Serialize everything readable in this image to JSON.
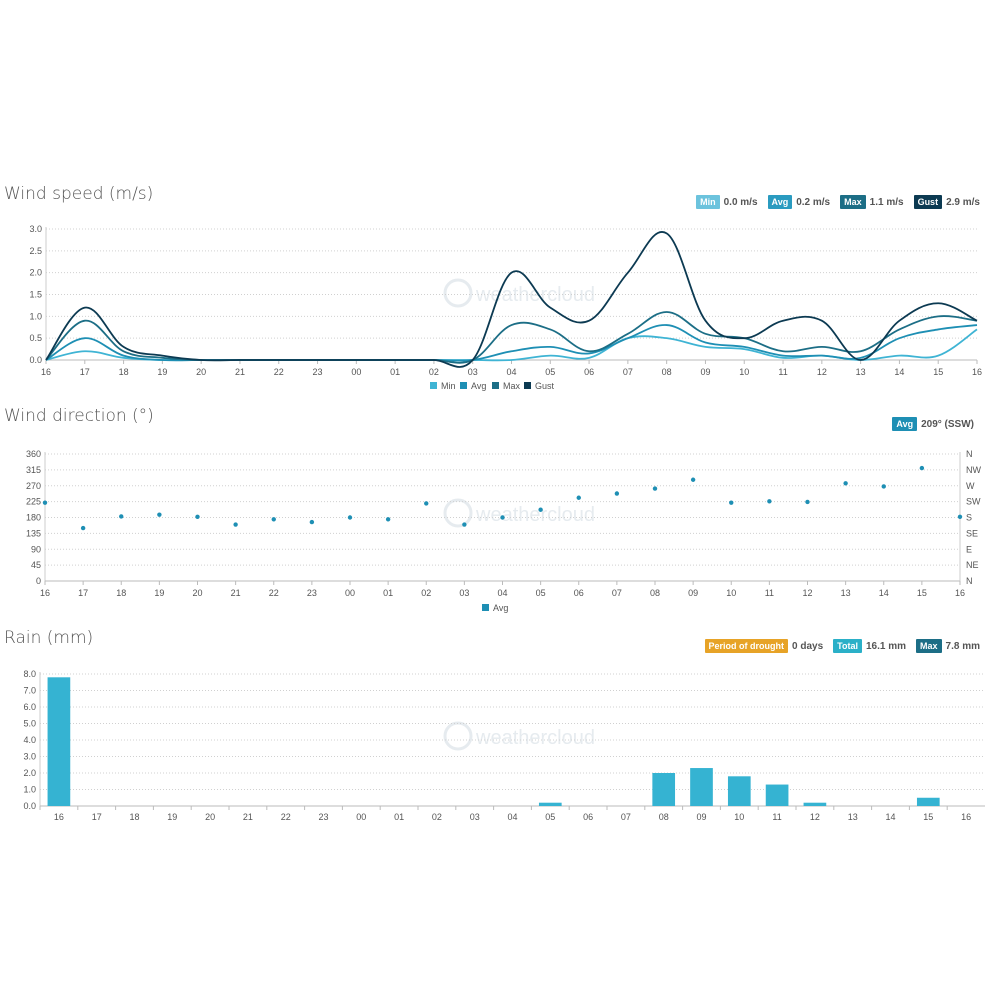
{
  "hours": [
    "16",
    "17",
    "18",
    "19",
    "20",
    "21",
    "22",
    "23",
    "00",
    "01",
    "02",
    "03",
    "04",
    "05",
    "06",
    "07",
    "08",
    "09",
    "10",
    "11",
    "12",
    "13",
    "14",
    "15",
    "16"
  ],
  "watermark": "weathercloud",
  "colors": {
    "min": "#3fb4d4",
    "avg": "#1e8fb4",
    "max": "#1c6e86",
    "gust": "#0c3a52",
    "dir": "#1e8fb4",
    "rain": "#35b3d2",
    "drought": "#e7a327",
    "total": "#2ab0c8",
    "rainmax": "#1c6e86"
  },
  "wind_speed": {
    "title": "Wind speed (m/s)",
    "stats": [
      {
        "label": "Min",
        "value": "0.0 m/s",
        "color": "#6cc3dd"
      },
      {
        "label": "Avg",
        "value": "0.2 m/s",
        "color": "#2a9bc0"
      },
      {
        "label": "Max",
        "value": "1.1 m/s",
        "color": "#1c6e86"
      },
      {
        "label": "Gust",
        "value": "2.9 m/s",
        "color": "#0c3a52"
      }
    ],
    "legend": [
      "Min",
      "Avg",
      "Max",
      "Gust"
    ]
  },
  "wind_direction": {
    "title": "Wind direction (°)",
    "stats": [
      {
        "label": "Avg",
        "value": "209° (SSW)",
        "color": "#1e8fb4"
      }
    ],
    "legend": [
      "Avg"
    ]
  },
  "rain": {
    "title": "Rain (mm)",
    "stats": [
      {
        "label": "Period of drought",
        "value": "0 days",
        "color": "#e7a327"
      },
      {
        "label": "Total",
        "value": "16.1 mm",
        "color": "#2ab0c8"
      },
      {
        "label": "Max",
        "value": "7.8 mm",
        "color": "#1c6e86"
      }
    ]
  },
  "chart_data": [
    {
      "type": "line",
      "title": "Wind speed (m/s)",
      "x": [
        "16",
        "17",
        "18",
        "19",
        "20",
        "21",
        "22",
        "23",
        "00",
        "01",
        "02",
        "03",
        "04",
        "05",
        "06",
        "07",
        "08",
        "09",
        "10",
        "11",
        "12",
        "13",
        "14",
        "15",
        "16"
      ],
      "ylim": [
        0,
        3.0
      ],
      "yticks": [
        "0.0",
        "0.5",
        "1.0",
        "1.5",
        "2.0",
        "2.5",
        "3.0"
      ],
      "series": [
        {
          "name": "Min",
          "values": [
            0,
            0.2,
            0.05,
            0,
            0,
            0,
            0,
            0,
            0,
            0,
            0,
            0,
            0,
            0.1,
            0.05,
            0.5,
            0.5,
            0.3,
            0.25,
            0.05,
            0.1,
            0,
            0.1,
            0.1,
            0.7
          ]
        },
        {
          "name": "Avg",
          "values": [
            0,
            0.5,
            0.1,
            0,
            0,
            0,
            0,
            0,
            0,
            0,
            0,
            0,
            0.2,
            0.3,
            0.15,
            0.5,
            0.8,
            0.4,
            0.3,
            0.1,
            0.1,
            0.05,
            0.5,
            0.7,
            0.8
          ]
        },
        {
          "name": "Max",
          "values": [
            0,
            0.9,
            0.2,
            0.05,
            0,
            0,
            0,
            0,
            0,
            0,
            0,
            0,
            0.8,
            0.7,
            0.2,
            0.6,
            1.1,
            0.6,
            0.5,
            0.2,
            0.3,
            0.2,
            0.7,
            1.0,
            0.9
          ]
        },
        {
          "name": "Gust",
          "values": [
            0,
            1.2,
            0.3,
            0.1,
            0,
            0,
            0,
            0,
            0,
            0,
            0,
            0,
            2.0,
            1.2,
            0.9,
            2.0,
            2.9,
            0.9,
            0.5,
            0.9,
            0.9,
            0,
            0.9,
            1.3,
            0.9
          ]
        }
      ],
      "grid": true,
      "legend_position": "bottom-center"
    },
    {
      "type": "scatter",
      "title": "Wind direction (°)",
      "x": [
        "16",
        "17",
        "18",
        "19",
        "20",
        "21",
        "22",
        "23",
        "00",
        "01",
        "02",
        "03",
        "04",
        "05",
        "06",
        "07",
        "08",
        "09",
        "10",
        "11",
        "12",
        "13",
        "14",
        "15",
        "16"
      ],
      "ylim": [
        0,
        360
      ],
      "yticks": [
        "0",
        "45",
        "90",
        "135",
        "180",
        "225",
        "270",
        "315",
        "360"
      ],
      "yticks_right": [
        "N",
        "NE",
        "E",
        "SE",
        "S",
        "SW",
        "W",
        "NW",
        "N"
      ],
      "series": [
        {
          "name": "Avg",
          "values": [
            222,
            150,
            183,
            188,
            182,
            160,
            175,
            167,
            180,
            175,
            220,
            160,
            180,
            202,
            236,
            248,
            262,
            287,
            222,
            226,
            224,
            277,
            268,
            320,
            182
          ]
        }
      ],
      "grid": true,
      "legend_position": "bottom-center"
    },
    {
      "type": "bar",
      "title": "Rain (mm)",
      "categories": [
        "16",
        "17",
        "18",
        "19",
        "20",
        "21",
        "22",
        "23",
        "00",
        "01",
        "02",
        "03",
        "04",
        "05",
        "06",
        "07",
        "08",
        "09",
        "10",
        "11",
        "12",
        "13",
        "14",
        "15",
        "16"
      ],
      "ylim": [
        0,
        8.0
      ],
      "yticks": [
        "0.0",
        "1.0",
        "2.0",
        "3.0",
        "4.0",
        "5.0",
        "6.0",
        "7.0",
        "8.0"
      ],
      "values": [
        7.8,
        0,
        0,
        0,
        0,
        0,
        0,
        0,
        0,
        0,
        0,
        0,
        0,
        0.2,
        0,
        0,
        2.0,
        2.3,
        1.8,
        1.3,
        0.2,
        0,
        0,
        0.5,
        0
      ],
      "grid": true
    }
  ]
}
